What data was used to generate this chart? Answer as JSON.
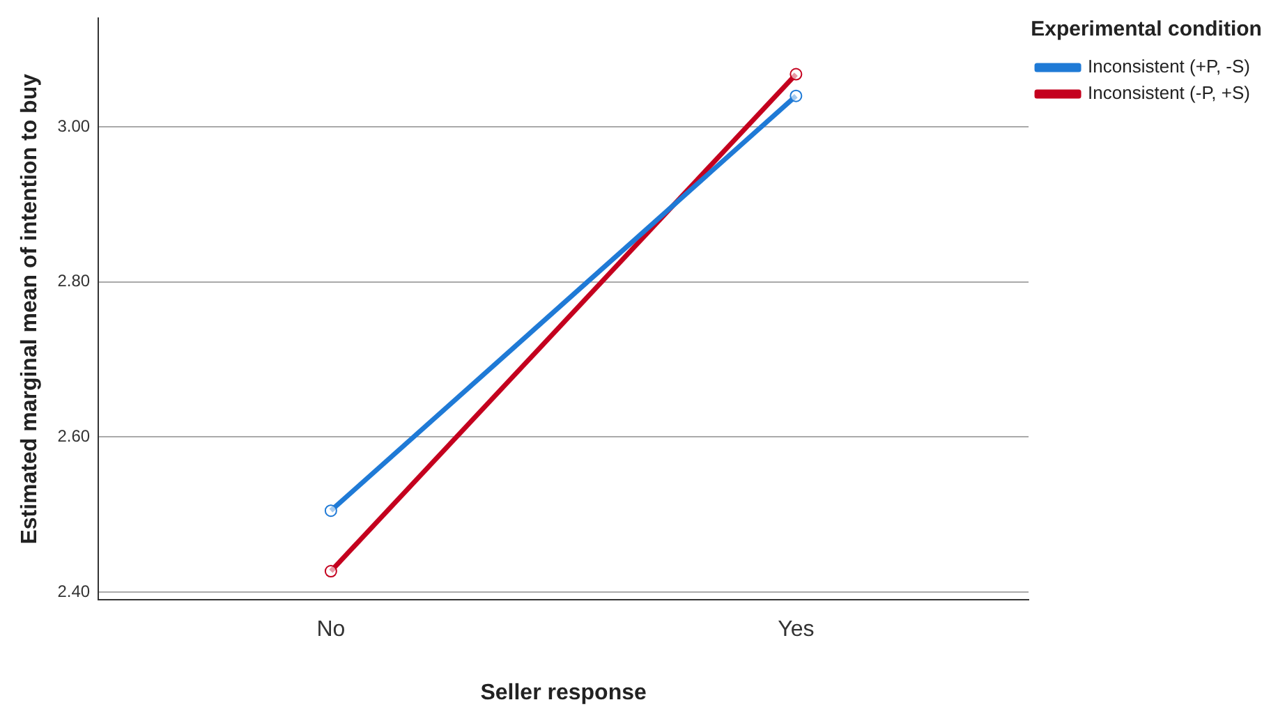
{
  "chart_data": {
    "type": "line",
    "xlabel": "Seller response",
    "ylabel": "Estimated marginal mean of intention to buy",
    "legend_title": "Experimental condition",
    "categories": [
      "No",
      "Yes"
    ],
    "series": [
      {
        "name": "Inconsistent (+P, -S)",
        "color": "#1f7ad6",
        "values": [
          2.505,
          3.04
        ]
      },
      {
        "name": "Inconsistent (-P, +S)",
        "color": "#c4001e",
        "values": [
          2.427,
          3.068
        ]
      }
    ],
    "ylim": [
      2.39,
      3.14
    ],
    "yticks": [
      {
        "value": 2.4,
        "label": "2.40"
      },
      {
        "value": 2.6,
        "label": "2.60"
      },
      {
        "value": 2.8,
        "label": "2.80"
      },
      {
        "value": 3.0,
        "label": "3.00"
      }
    ],
    "grid": "y",
    "legend": "top right",
    "marker": "circle",
    "line_style": "solid"
  }
}
